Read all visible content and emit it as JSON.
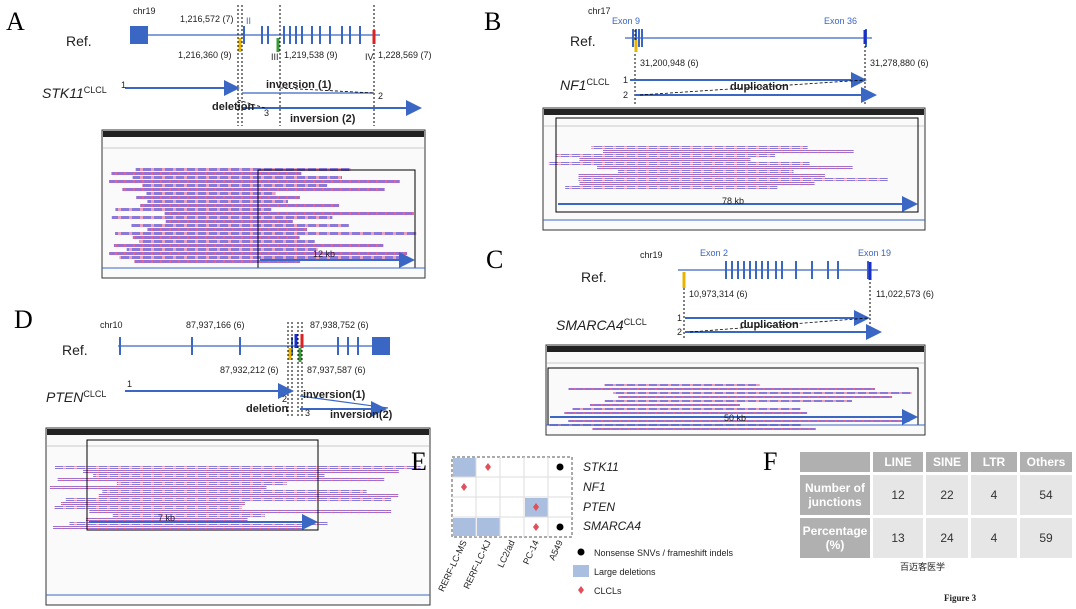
{
  "panels": {
    "a": {
      "letter": "A",
      "chrom": "chr19",
      "ref": "Ref.",
      "coords": [
        "1,216,572 (7)",
        "1,216,360 (9)",
        "1,219,538 (9)",
        "1,228,569 (7)"
      ],
      "exons": [
        "II",
        "III",
        "IV"
      ],
      "gene": "STK11",
      "superscript": "CLCL",
      "junctions": [
        "1",
        "2",
        "3"
      ],
      "events": [
        "inversion (1)",
        "deletion",
        "inversion (2)"
      ],
      "scale": "12 kb"
    },
    "b": {
      "letter": "B",
      "chrom": "chr17",
      "ref": "Ref.",
      "exons": [
        "Exon 9",
        "Exon 36"
      ],
      "coords": [
        "31,200,948 (6)",
        "31,278,880 (6)"
      ],
      "gene": "NF1",
      "superscript": "CLCL",
      "junctions": [
        "1",
        "2"
      ],
      "event": "duplication",
      "scale": "78 kb"
    },
    "c": {
      "letter": "C",
      "chrom": "chr19",
      "ref": "Ref.",
      "exons": [
        "Exon 2",
        "Exon 19"
      ],
      "coords": [
        "10,973,314 (6)",
        "11,022,573 (6)"
      ],
      "gene": "SMARCA4",
      "superscript": "CLCL",
      "junctions": [
        "1",
        "2"
      ],
      "event": "duplication",
      "scale": "50 kb"
    },
    "d": {
      "letter": "D",
      "chrom": "chr10",
      "ref": "Ref.",
      "coords": [
        "87,937,166 (6)",
        "87,938,752 (6)",
        "87,932,212 (6)",
        "87,937,587 (6)"
      ],
      "gene": "PTEN",
      "superscript": "CLCL",
      "junctions": [
        "1",
        "2",
        "3"
      ],
      "events": [
        "inversion(1)",
        "deletion",
        "inversion(2)"
      ],
      "scale": "7 kb"
    },
    "e": {
      "letter": "E",
      "genes": [
        "STK11",
        "NF1",
        "PTEN",
        "SMARCA4"
      ],
      "cell_lines": [
        "RERF-LC-MS",
        "RERF-LC-KJ",
        "LC2/ad",
        "PC-14",
        "A549"
      ],
      "legend": [
        "Nonsense SNVs / frameshift indels",
        "Large deletions",
        "CLCLs"
      ]
    },
    "f": {
      "letter": "F",
      "table": {
        "header": [
          "LINE",
          "SINE",
          "LTR",
          "Others"
        ],
        "rows": [
          [
            "Number of junctions",
            12,
            22,
            4,
            54
          ],
          [
            "Percentage (%)",
            13,
            24,
            4,
            59
          ]
        ]
      }
    }
  },
  "watermark": "百迈客医学",
  "figure_label": "Figure 3"
}
